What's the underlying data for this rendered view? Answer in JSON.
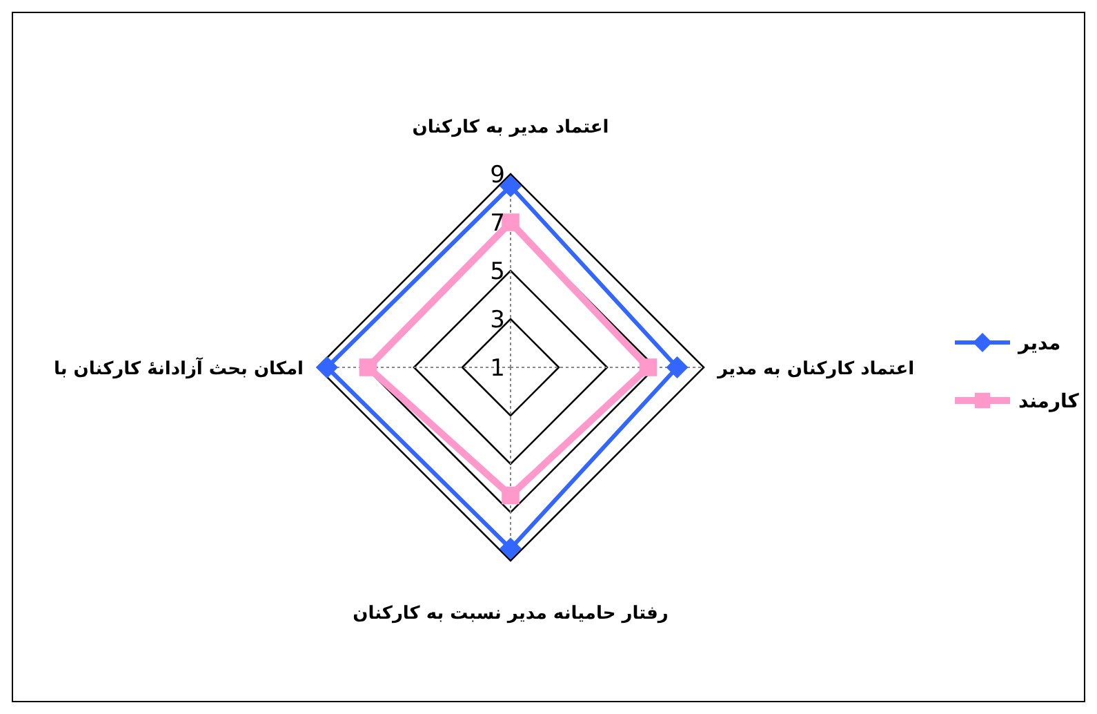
{
  "chart_data": {
    "type": "radar",
    "categories": [
      "اعتماد مدیر به کارکنان",
      "اعتماد کارکنان به مدیر",
      "رفتار حامیانه مدیر نسبت به کارکنان",
      "امکان بحث آزادانهٔ کارکنان با"
    ],
    "series": [
      {
        "name": "مدیر",
        "color": "#3366ff",
        "marker": "diamond",
        "values": [
          8.5,
          7.9,
          8.5,
          8.6
        ]
      },
      {
        "name": "کارمند",
        "color": "#ff99cc",
        "marker": "square",
        "values": [
          7,
          6.7,
          6.3,
          6.9
        ]
      }
    ],
    "ylim": [
      1,
      9
    ],
    "yticks": [
      1,
      3,
      5,
      7,
      9
    ],
    "grid": true,
    "legend": "right"
  }
}
